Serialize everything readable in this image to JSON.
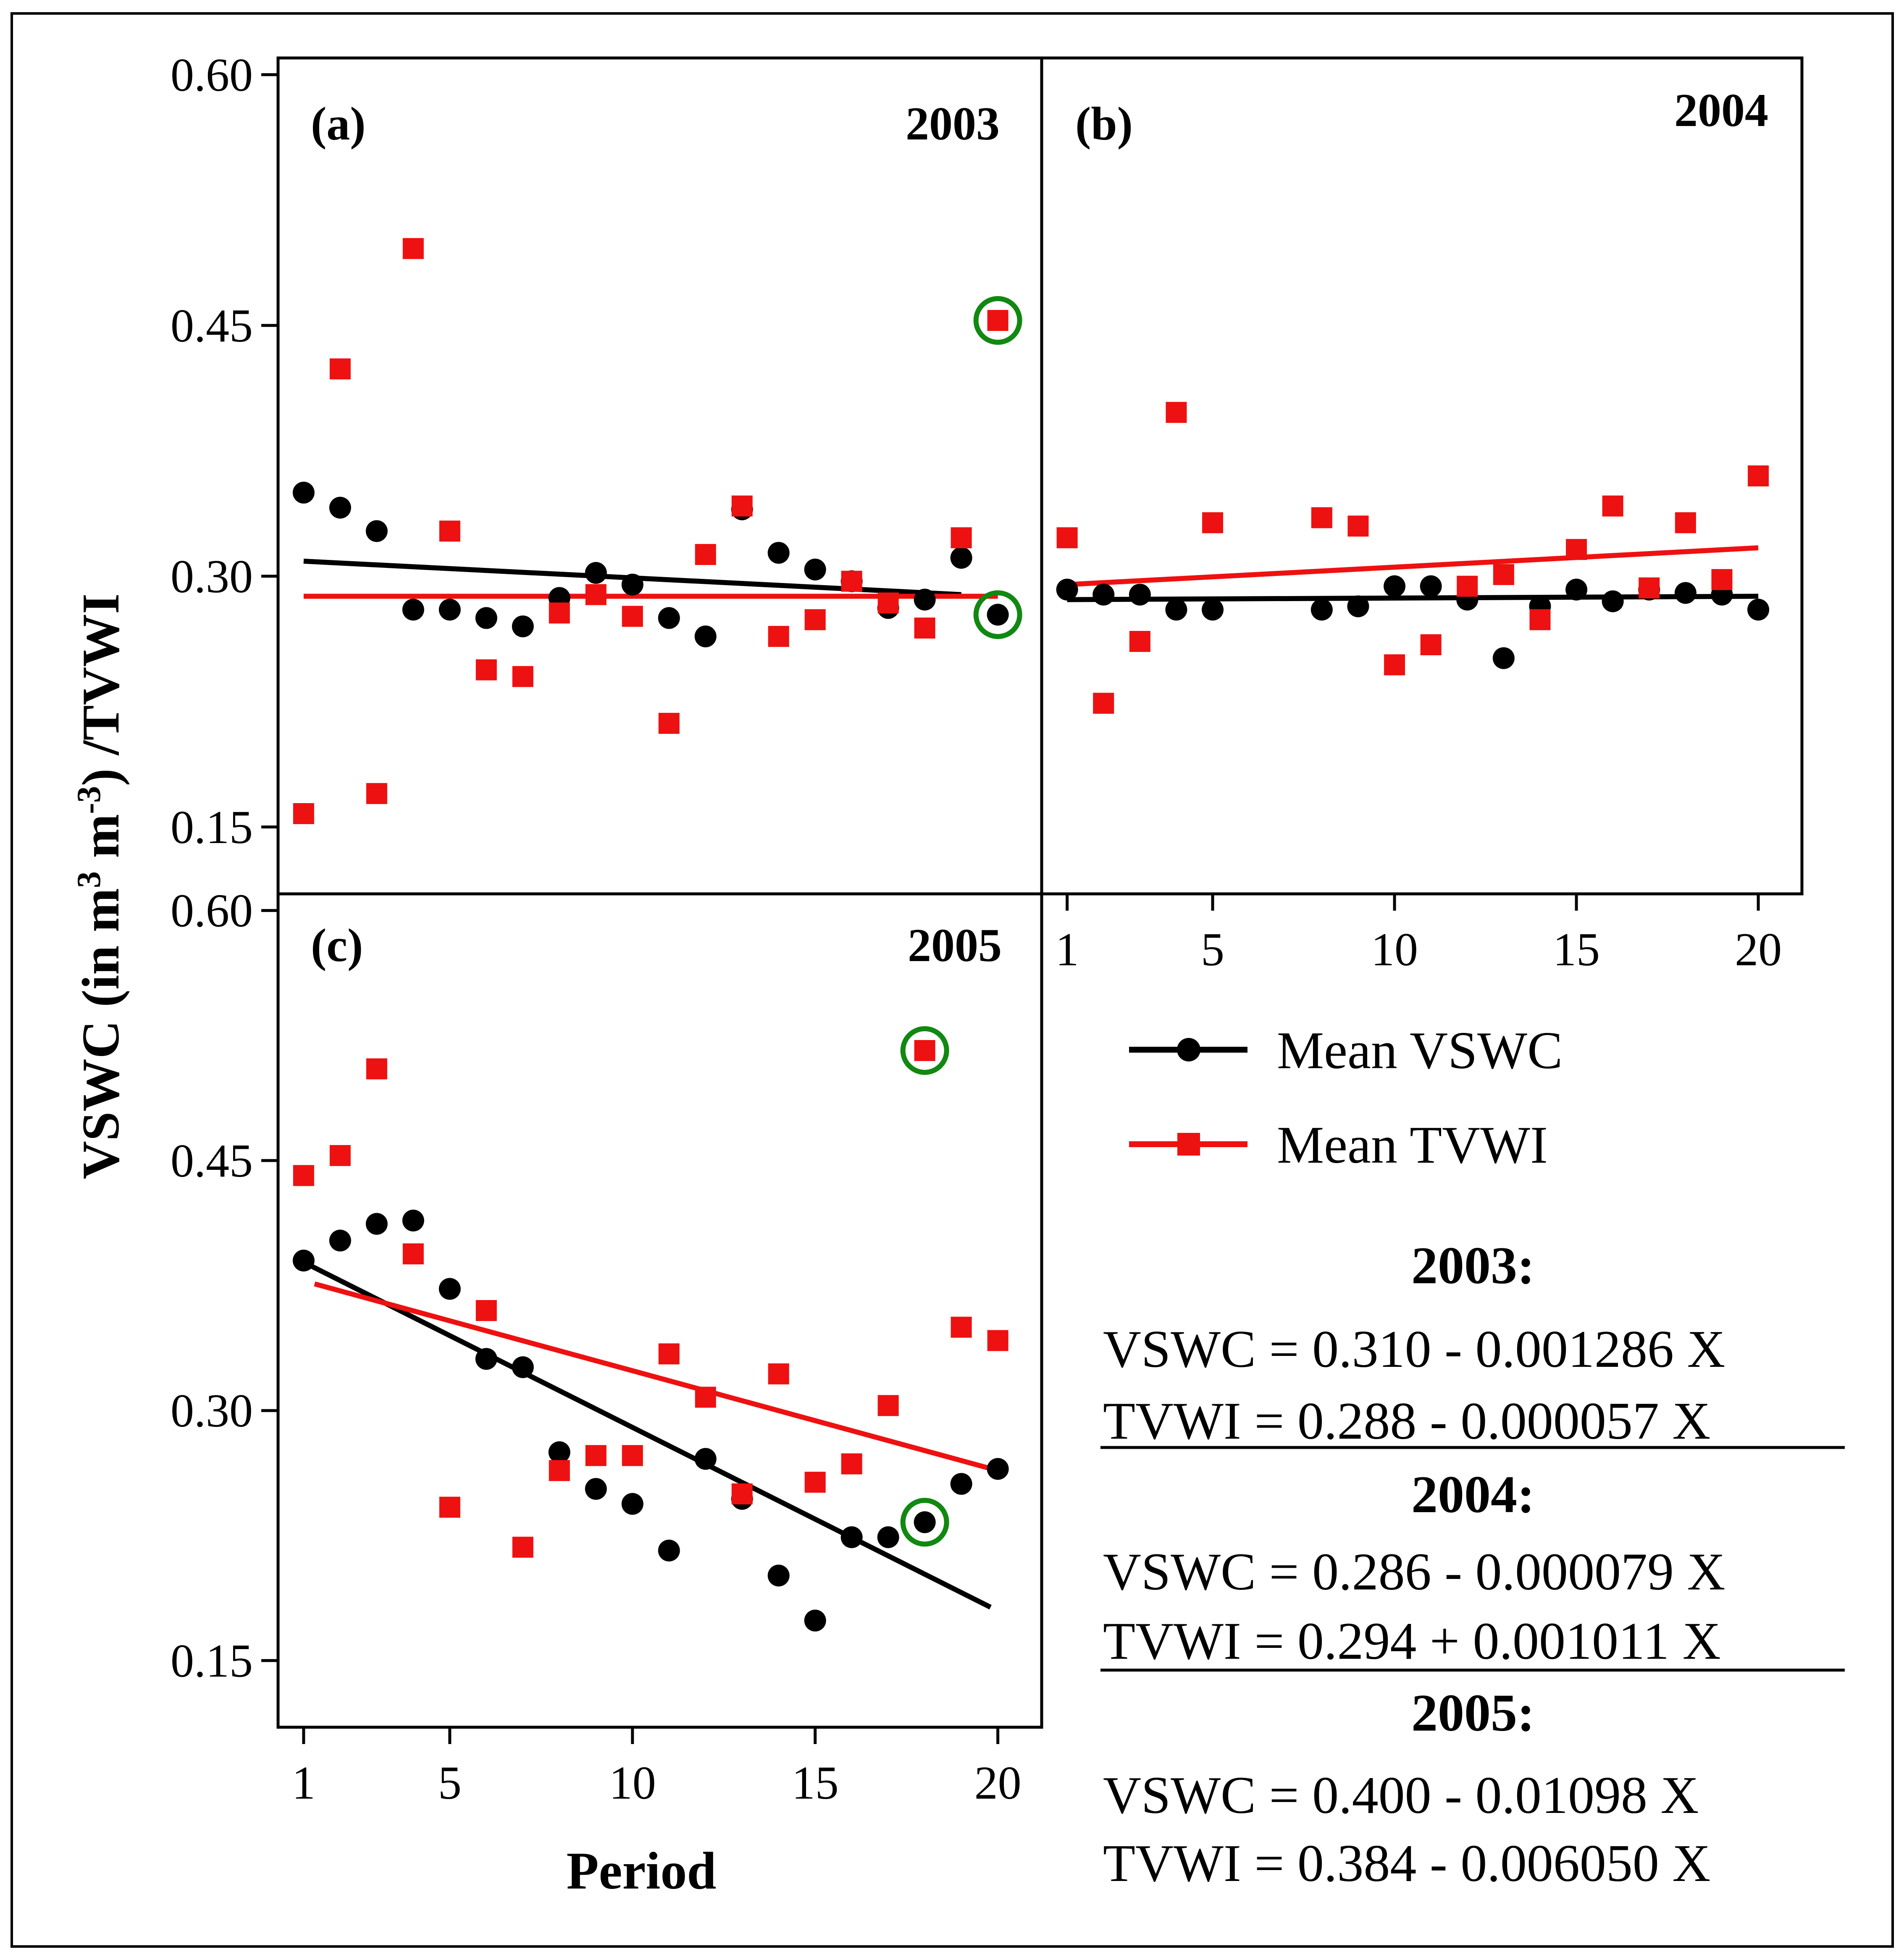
{
  "figure": {
    "y_axis_title_parts": [
      "VSWC (in m",
      "3",
      " m",
      "-3",
      ") /TVWI"
    ],
    "x_axis_title": "Period"
  },
  "legend": {
    "vswc_label": "Mean VSWC",
    "tvwi_label": "Mean TVWI"
  },
  "colors": {
    "vswc": "#000000",
    "tvwi": "#ee1111",
    "highlight": "#118811"
  },
  "equations": [
    {
      "year": "2003:",
      "vswc": "VSWC = 0.310 - 0.001286 X",
      "tvwi": "TVWI = 0.288 - 0.000057 X"
    },
    {
      "year": "2004:",
      "vswc": "VSWC = 0.286 - 0.000079 X",
      "tvwi": "TVWI = 0.294 + 0.001011 X"
    },
    {
      "year": "2005:",
      "vswc": "VSWC = 0.400 - 0.01098 X",
      "tvwi": "TVWI = 0.384 - 0.006050 X"
    }
  ],
  "chart_data": [
    {
      "type": "scatter",
      "panel": "(a)",
      "title": "2003",
      "xlabel": "Period",
      "ylabel": "VSWC (in m3 m-3) /TVWI",
      "xlim": [
        0.3,
        21.2
      ],
      "ylim": [
        0.11,
        0.61
      ],
      "xticks": [
        "1",
        "5",
        "10",
        "15",
        "20"
      ],
      "yticks": [
        "0.15",
        "0.30",
        "0.45",
        "0.60"
      ],
      "series": [
        {
          "name": "Mean VSWC",
          "x": [
            1,
            2,
            3,
            4,
            5,
            6,
            7,
            8,
            9,
            10,
            11,
            12,
            13,
            14,
            15,
            16,
            17,
            18,
            19,
            20
          ],
          "y": [
            0.35,
            0.341,
            0.327,
            0.28,
            0.28,
            0.275,
            0.27,
            0.287,
            0.302,
            0.295,
            0.275,
            0.264,
            0.34,
            0.314,
            0.304,
            0.297,
            0.281,
            0.286,
            0.311,
            0.277
          ],
          "fit": {
            "x": [
              1,
              19
            ],
            "y": [
              0.309,
              0.289
            ]
          }
        },
        {
          "name": "Mean TVWI",
          "x": [
            1,
            2,
            3,
            4,
            5,
            6,
            7,
            8,
            9,
            10,
            11,
            12,
            13,
            14,
            15,
            16,
            17,
            18,
            19,
            20
          ],
          "y": [
            0.158,
            0.424,
            0.17,
            0.496,
            0.327,
            0.244,
            0.24,
            0.278,
            0.289,
            0.276,
            0.212,
            0.313,
            0.342,
            0.264,
            0.274,
            0.297,
            0.284,
            0.269,
            0.323,
            0.453
          ],
          "fit": {
            "x": [
              1,
              20
            ],
            "y": [
              0.288,
              0.288
            ]
          }
        }
      ],
      "highlighted_points": [
        {
          "series": "Mean TVWI",
          "x": 20
        },
        {
          "series": "Mean VSWC",
          "x": 20
        }
      ]
    },
    {
      "type": "scatter",
      "panel": "(b)",
      "title": "2004",
      "xlabel": "Period",
      "ylabel": "VSWC (in m3 m-3) /TVWI",
      "xlim": [
        0.3,
        21.2
      ],
      "ylim": [
        0.11,
        0.61
      ],
      "xticks": [
        "1",
        "5",
        "10",
        "15",
        "20"
      ],
      "yticks": [
        "0.15",
        "0.30",
        "0.45",
        "0.60"
      ],
      "series": [
        {
          "name": "Mean VSWC",
          "x": [
            1,
            2,
            3,
            4,
            5,
            8,
            9,
            10,
            11,
            12,
            13,
            14,
            15,
            16,
            17,
            18,
            19,
            20
          ],
          "y": [
            0.292,
            0.289,
            0.289,
            0.28,
            0.28,
            0.28,
            0.282,
            0.294,
            0.294,
            0.286,
            0.251,
            0.282,
            0.292,
            0.285,
            0.292,
            0.29,
            0.289,
            0.28
          ],
          "fit": {
            "x": [
              1,
              20
            ],
            "y": [
              0.286,
              0.288
            ]
          }
        },
        {
          "name": "Mean TVWI",
          "x": [
            1,
            2,
            3,
            4,
            5,
            8,
            9,
            10,
            11,
            12,
            13,
            14,
            15,
            16,
            17,
            18,
            19,
            20
          ],
          "y": [
            0.323,
            0.224,
            0.261,
            0.398,
            0.332,
            0.335,
            0.33,
            0.247,
            0.259,
            0.294,
            0.301,
            0.274,
            0.316,
            0.342,
            0.293,
            0.332,
            0.298,
            0.36
          ],
          "fit": {
            "x": [
              1,
              20
            ],
            "y": [
              0.295,
              0.317
            ]
          }
        }
      ]
    },
    {
      "type": "scatter",
      "panel": "(c)",
      "title": "2005",
      "xlabel": "Period",
      "ylabel": "VSWC (in m3 m-3) /TVWI",
      "xlim": [
        0.3,
        21.2
      ],
      "ylim": [
        0.11,
        0.61
      ],
      "xticks": [
        "1",
        "5",
        "10",
        "15",
        "20"
      ],
      "yticks": [
        "0.15",
        "0.30",
        "0.45",
        "0.60"
      ],
      "series": [
        {
          "name": "Mean VSWC",
          "x": [
            1,
            2,
            3,
            4,
            5,
            6,
            7,
            8,
            9,
            10,
            11,
            12,
            13,
            14,
            15,
            16,
            17,
            18,
            19,
            20
          ],
          "y": [
            0.39,
            0.402,
            0.412,
            0.414,
            0.373,
            0.331,
            0.326,
            0.275,
            0.253,
            0.244,
            0.216,
            0.271,
            0.247,
            0.201,
            0.174,
            0.224,
            0.224,
            0.233,
            0.256,
            0.265
          ],
          "fit": {
            "x": [
              1,
              19.8
            ],
            "y": [
              0.389,
              0.182
            ]
          }
        },
        {
          "name": "Mean TVWI",
          "x": [
            1,
            2,
            3,
            4,
            5,
            6,
            7,
            8,
            9,
            10,
            11,
            12,
            13,
            14,
            15,
            16,
            17,
            18,
            19,
            20
          ],
          "y": [
            0.441,
            0.453,
            0.505,
            0.394,
            0.242,
            0.36,
            0.218,
            0.264,
            0.273,
            0.273,
            0.334,
            0.308,
            0.25,
            0.322,
            0.257,
            0.268,
            0.303,
            0.516,
            0.35,
            0.342
          ],
          "fit": {
            "x": [
              1.3,
              20
            ],
            "y": [
              0.376,
              0.264
            ]
          }
        }
      ],
      "highlighted_points": [
        {
          "series": "Mean TVWI",
          "x": 18
        },
        {
          "series": "Mean VSWC",
          "x": 18
        }
      ]
    }
  ]
}
